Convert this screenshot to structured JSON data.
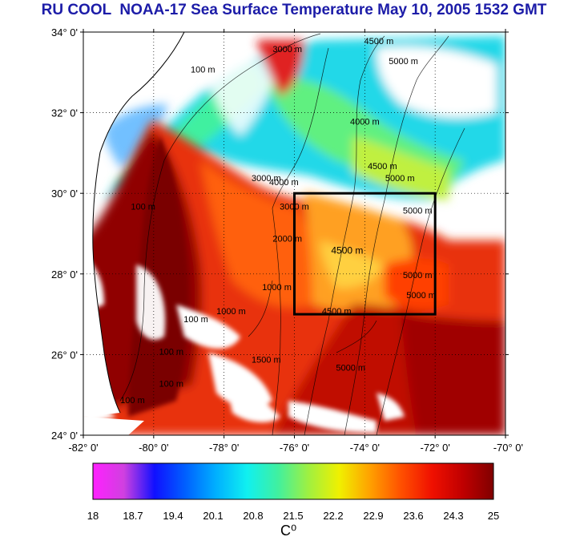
{
  "title": "RU COOL  NOAA-17 Sea Surface Temperature May 10, 2005 1532 GMT",
  "map": {
    "lon_range": [
      -82,
      -70
    ],
    "lat_range": [
      24,
      34
    ],
    "lat_ticks": [
      {
        "value": 34,
        "label": "34° 0'"
      },
      {
        "value": 32,
        "label": "32° 0'"
      },
      {
        "value": 30,
        "label": "30° 0'"
      },
      {
        "value": 28,
        "label": "28° 0'"
      },
      {
        "value": 26,
        "label": "26° 0'"
      },
      {
        "value": 24,
        "label": "24° 0'"
      }
    ],
    "lon_ticks": [
      {
        "value": -82,
        "label": "-82° 0'"
      },
      {
        "value": -80,
        "label": "-80° 0'"
      },
      {
        "value": -78,
        "label": "-78° 0'"
      },
      {
        "value": -76,
        "label": "-76° 0'"
      },
      {
        "value": -74,
        "label": "-74° 0'"
      },
      {
        "value": -72,
        "label": "-72° 0'"
      },
      {
        "value": -70,
        "label": "-70° 0'"
      }
    ],
    "grid": true,
    "study_box": {
      "lon_min": -76,
      "lon_max": -72,
      "lat_min": 27,
      "lat_max": 30
    },
    "depth_labels": [
      {
        "text": "4500 m",
        "lon": -74.5,
        "lat": 28.5
      },
      {
        "text": "4500 m",
        "lon": -74.8,
        "lat": 27.0
      },
      {
        "text": "5000 m",
        "lon": -74.4,
        "lat": 25.6
      },
      {
        "text": "4000 m",
        "lon": -74.0,
        "lat": 31.7
      },
      {
        "text": "4500 m",
        "lon": -73.5,
        "lat": 30.6
      },
      {
        "text": "5000 m",
        "lon": -73.0,
        "lat": 30.3
      },
      {
        "text": "4500 m",
        "lon": -73.6,
        "lat": 33.7
      },
      {
        "text": "5000 m",
        "lon": -72.9,
        "lat": 33.2
      },
      {
        "text": "5000 m",
        "lon": -72.5,
        "lat": 29.5
      },
      {
        "text": "5000 m",
        "lon": -72.5,
        "lat": 27.9
      },
      {
        "text": "5000 m",
        "lon": -72.4,
        "lat": 27.4
      },
      {
        "text": "3000 m",
        "lon": -76.8,
        "lat": 30.3
      },
      {
        "text": "4000 m",
        "lon": -76.3,
        "lat": 30.2
      },
      {
        "text": "3000 m",
        "lon": -76.0,
        "lat": 29.6
      },
      {
        "text": "2000 m",
        "lon": -76.2,
        "lat": 28.8
      },
      {
        "text": "1000 m",
        "lon": -76.5,
        "lat": 27.6
      },
      {
        "text": "1000 m",
        "lon": -77.8,
        "lat": 27.0
      },
      {
        "text": "100 m",
        "lon": -80.3,
        "lat": 29.6
      },
      {
        "text": "100 m",
        "lon": -78.8,
        "lat": 26.8
      },
      {
        "text": "100 m",
        "lon": -79.5,
        "lat": 26.0
      },
      {
        "text": "100 m",
        "lon": -79.5,
        "lat": 25.2
      },
      {
        "text": "100 m",
        "lon": -80.6,
        "lat": 24.8
      },
      {
        "text": "100 m",
        "lon": -78.6,
        "lat": 33.0
      },
      {
        "text": "3000 m",
        "lon": -76.2,
        "lat": 33.5
      },
      {
        "text": "1500 m",
        "lon": -76.8,
        "lat": 25.8
      }
    ]
  },
  "colorbar": {
    "label": "C⁰",
    "ticks": [
      "18",
      "18.7",
      "19.4",
      "20.1",
      "20.8",
      "21.5",
      "22.2",
      "22.9",
      "23.6",
      "24.3",
      "25"
    ],
    "colors": [
      "#ff20ff",
      "#d040e0",
      "#1010ff",
      "#0060ff",
      "#00b0ff",
      "#10f0f0",
      "#40f0a0",
      "#a0f040",
      "#f0f000",
      "#ffa000",
      "#ff5000",
      "#f01000",
      "#c00000",
      "#800000"
    ]
  }
}
